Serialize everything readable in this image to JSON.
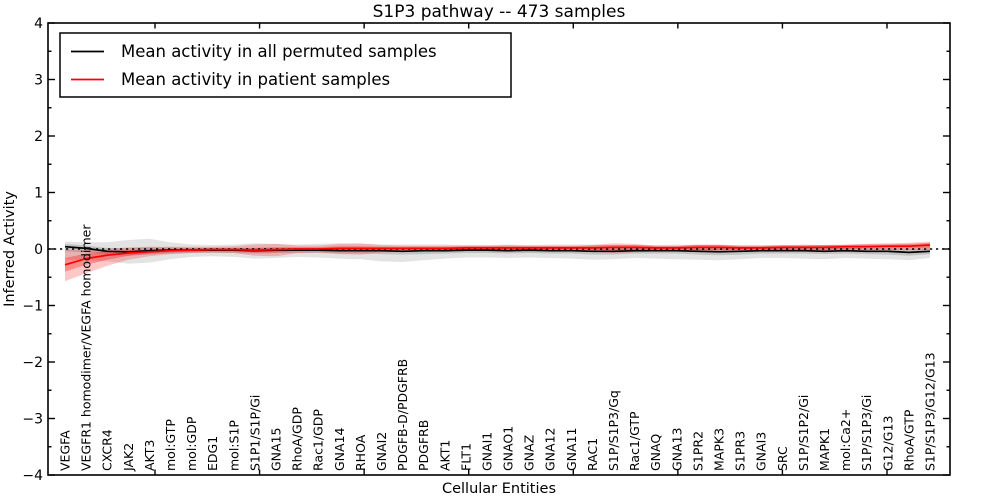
{
  "chart_data": {
    "type": "line",
    "title": "S1P3 pathway -- 473 samples",
    "xlabel": "Cellular Entities",
    "ylabel": "Inferred Activity",
    "ylim": [
      -4,
      4
    ],
    "yticks": [
      4,
      3,
      2,
      1,
      0,
      -1,
      -2,
      -3,
      -4
    ],
    "ytick_labels": [
      "4",
      "3",
      "2",
      "1",
      "0",
      "−1",
      "−2",
      "−3",
      "−4"
    ],
    "grid": false,
    "legend_position": "upper left",
    "zero_line_style": "dotted-black",
    "x_tick_label_rotation": 90,
    "categories": [
      "VEGFA",
      "VEGFR1 homodimer/VEGFA homodimer",
      "CXCR4",
      "JAK2",
      "AKT3",
      "mol:GTP",
      "mol:GDP",
      "EDG1",
      "mol:S1P",
      "S1P1/S1P/Gi",
      "GNA15",
      "RhoA/GDP",
      "Rac1/GDP",
      "GNA14",
      "RHOA",
      "GNAI2",
      "PDGFB-D/PDGFRB",
      "PDGFRB",
      "AKT1",
      "FLT1",
      "GNAI1",
      "GNAO1",
      "GNAZ",
      "GNA12",
      "GNA11",
      "RAC1",
      "S1P/S1P3/Gq",
      "Rac1/GTP",
      "GNAQ",
      "GNA13",
      "S1PR2",
      "MAPK3",
      "S1PR3",
      "GNAI3",
      "SRC",
      "S1P/S1P2/Gi",
      "MAPK1",
      "mol:Ca2+",
      "S1P/S1P3/Gi",
      "G12/G13",
      "RhoA/GTP",
      "S1P/S1P3/G12/G13"
    ],
    "series": [
      {
        "name": "Mean activity in all permuted samples",
        "color": "#000000",
        "band_outer_color": "rgba(0,0,0,0.11)",
        "band_inner_color": "rgba(0,0,0,0.15)",
        "values": [
          0.04,
          0.01,
          -0.04,
          -0.05,
          -0.03,
          -0.02,
          -0.02,
          -0.02,
          -0.02,
          -0.03,
          -0.02,
          -0.02,
          -0.02,
          -0.03,
          -0.03,
          -0.03,
          -0.04,
          -0.03,
          -0.03,
          -0.02,
          -0.02,
          -0.03,
          -0.02,
          -0.03,
          -0.03,
          -0.04,
          -0.04,
          -0.03,
          -0.03,
          -0.03,
          -0.04,
          -0.05,
          -0.04,
          -0.03,
          -0.03,
          -0.03,
          -0.04,
          -0.03,
          -0.04,
          -0.04,
          -0.06,
          -0.04
        ],
        "band_outer_low": [
          -0.18,
          -0.2,
          -0.22,
          -0.26,
          -0.24,
          -0.18,
          -0.14,
          -0.13,
          -0.14,
          -0.17,
          -0.16,
          -0.14,
          -0.15,
          -0.17,
          -0.18,
          -0.22,
          -0.23,
          -0.2,
          -0.17,
          -0.15,
          -0.15,
          -0.16,
          -0.15,
          -0.16,
          -0.17,
          -0.19,
          -0.18,
          -0.16,
          -0.17,
          -0.18,
          -0.19,
          -0.2,
          -0.18,
          -0.16,
          -0.16,
          -0.17,
          -0.18,
          -0.16,
          -0.17,
          -0.18,
          -0.2,
          -0.16
        ],
        "band_outer_high": [
          0.13,
          0.12,
          0.12,
          0.16,
          0.18,
          0.12,
          0.08,
          0.07,
          0.08,
          0.1,
          0.09,
          0.08,
          0.09,
          0.1,
          0.09,
          0.08,
          0.08,
          0.08,
          0.08,
          0.07,
          0.07,
          0.08,
          0.07,
          0.08,
          0.08,
          0.08,
          0.07,
          0.07,
          0.07,
          0.08,
          0.07,
          0.07,
          0.07,
          0.07,
          0.07,
          0.08,
          0.07,
          0.07,
          0.08,
          0.08,
          0.08,
          0.09
        ],
        "band_inner_low": [
          -0.04,
          -0.06,
          -0.1,
          -0.12,
          -0.1,
          -0.08,
          -0.07,
          -0.07,
          -0.07,
          -0.08,
          -0.07,
          -0.07,
          -0.07,
          -0.08,
          -0.08,
          -0.09,
          -0.1,
          -0.09,
          -0.08,
          -0.07,
          -0.07,
          -0.08,
          -0.07,
          -0.08,
          -0.08,
          -0.1,
          -0.1,
          -0.08,
          -0.08,
          -0.08,
          -0.1,
          -0.11,
          -0.1,
          -0.08,
          -0.08,
          -0.08,
          -0.09,
          -0.08,
          -0.09,
          -0.1,
          -0.12,
          -0.09
        ],
        "band_inner_high": [
          0.09,
          0.06,
          0.02,
          0.01,
          0.03,
          0.03,
          0.02,
          0.02,
          0.02,
          0.02,
          0.02,
          0.02,
          0.02,
          0.02,
          0.02,
          0.02,
          0.01,
          0.02,
          0.02,
          0.02,
          0.02,
          0.02,
          0.02,
          0.02,
          0.02,
          0.01,
          0.01,
          0.02,
          0.02,
          0.02,
          0.01,
          0.01,
          0.01,
          0.02,
          0.02,
          0.02,
          0.01,
          0.02,
          0.01,
          0.01,
          0.0,
          0.01
        ]
      },
      {
        "name": "Mean activity in patient samples",
        "color": "#ff0000",
        "band_outer_color": "rgba(255,0,0,0.22)",
        "band_inner_color": "rgba(255,0,0,0.30)",
        "values": [
          -0.28,
          -0.17,
          -0.11,
          -0.07,
          -0.05,
          -0.03,
          -0.02,
          -0.01,
          -0.01,
          -0.02,
          -0.01,
          0.0,
          0.0,
          0.01,
          0.01,
          0.01,
          0.01,
          0.01,
          0.01,
          0.02,
          0.02,
          0.02,
          0.02,
          0.02,
          0.02,
          0.02,
          0.03,
          0.03,
          0.02,
          0.02,
          0.03,
          0.03,
          0.02,
          0.02,
          0.03,
          0.03,
          0.03,
          0.04,
          0.04,
          0.05,
          0.05,
          0.07
        ],
        "band_outer_low": [
          -0.57,
          -0.43,
          -0.3,
          -0.19,
          -0.13,
          -0.09,
          -0.07,
          -0.06,
          -0.07,
          -0.12,
          -0.13,
          -0.07,
          -0.06,
          -0.09,
          -0.1,
          -0.06,
          -0.05,
          -0.05,
          -0.05,
          -0.04,
          -0.04,
          -0.05,
          -0.04,
          -0.04,
          -0.04,
          -0.05,
          -0.07,
          -0.06,
          -0.04,
          -0.04,
          -0.05,
          -0.05,
          -0.04,
          -0.03,
          -0.04,
          -0.04,
          -0.04,
          -0.03,
          -0.02,
          -0.02,
          -0.02,
          -0.02
        ],
        "band_outer_high": [
          -0.02,
          -0.02,
          0.0,
          0.03,
          0.04,
          0.04,
          0.04,
          0.04,
          0.05,
          0.08,
          0.09,
          0.06,
          0.06,
          0.09,
          0.1,
          0.07,
          0.06,
          0.06,
          0.06,
          0.06,
          0.06,
          0.07,
          0.06,
          0.06,
          0.06,
          0.07,
          0.1,
          0.09,
          0.06,
          0.06,
          0.08,
          0.08,
          0.06,
          0.06,
          0.07,
          0.07,
          0.07,
          0.08,
          0.09,
          0.1,
          0.11,
          0.13
        ],
        "band_inner_low": [
          -0.4,
          -0.28,
          -0.19,
          -0.12,
          -0.08,
          -0.06,
          -0.05,
          -0.04,
          -0.04,
          -0.06,
          -0.06,
          -0.03,
          -0.03,
          -0.04,
          -0.04,
          -0.02,
          -0.02,
          -0.02,
          -0.02,
          -0.01,
          -0.01,
          -0.02,
          -0.01,
          -0.01,
          -0.01,
          -0.02,
          -0.02,
          -0.02,
          -0.01,
          -0.01,
          -0.02,
          -0.02,
          -0.01,
          -0.01,
          -0.01,
          -0.01,
          -0.01,
          0.0,
          0.01,
          0.01,
          0.01,
          0.02
        ],
        "band_inner_high": [
          -0.16,
          -0.08,
          -0.04,
          -0.02,
          -0.01,
          0.0,
          0.01,
          0.02,
          0.02,
          0.02,
          0.03,
          0.03,
          0.03,
          0.05,
          0.05,
          0.04,
          0.04,
          0.04,
          0.04,
          0.05,
          0.05,
          0.05,
          0.05,
          0.05,
          0.05,
          0.06,
          0.07,
          0.07,
          0.05,
          0.05,
          0.07,
          0.07,
          0.05,
          0.05,
          0.06,
          0.06,
          0.07,
          0.07,
          0.08,
          0.08,
          0.09,
          0.11
        ]
      }
    ]
  }
}
